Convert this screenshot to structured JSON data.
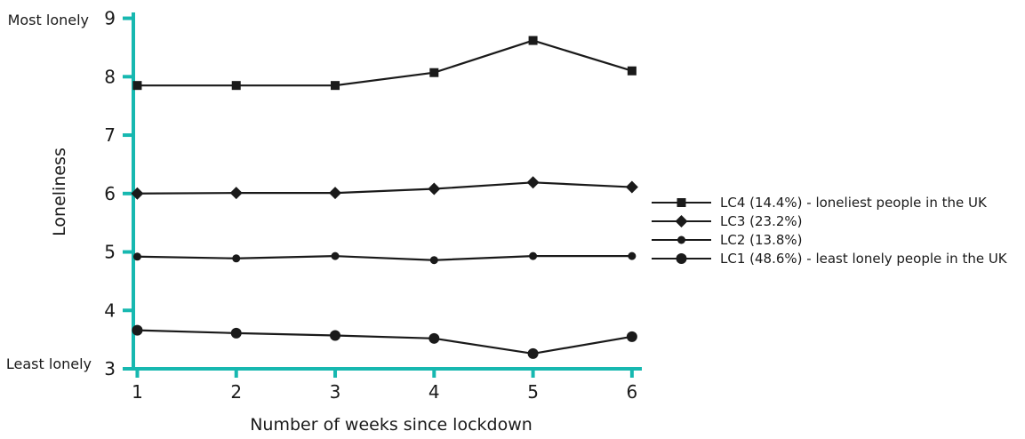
{
  "chart_data": {
    "type": "line",
    "xlabel": "Number of weeks since lockdown",
    "ylabel": "Loneliness",
    "ylabel_top": "Most lonely",
    "ylabel_bottom": "Least lonely",
    "x": [
      1,
      2,
      3,
      4,
      5,
      6
    ],
    "xlim": [
      0.96,
      6.1
    ],
    "ylim": [
      3,
      9.1
    ],
    "yticks": [
      3,
      4,
      5,
      6,
      7,
      8,
      9
    ],
    "grid": false,
    "legend_position": "right",
    "axis_color": "#17b8b0",
    "line_color": "#1a1a1a",
    "series": [
      {
        "name": "LC4 (14.4%) - loneliest people in the UK",
        "marker": "square",
        "values": [
          7.85,
          7.85,
          7.85,
          8.07,
          8.62,
          8.1
        ]
      },
      {
        "name": "LC3 (23.2%)",
        "marker": "diamond",
        "values": [
          6.0,
          6.01,
          6.01,
          6.08,
          6.19,
          6.11
        ]
      },
      {
        "name": "LC2 (13.8%)",
        "marker": "small-circle",
        "values": [
          4.92,
          4.89,
          4.93,
          4.86,
          4.93,
          4.93
        ]
      },
      {
        "name": "LC1 (48.6%) - least lonely people in the UK",
        "marker": "circle",
        "values": [
          3.66,
          3.61,
          3.57,
          3.52,
          3.26,
          3.55
        ]
      }
    ]
  }
}
